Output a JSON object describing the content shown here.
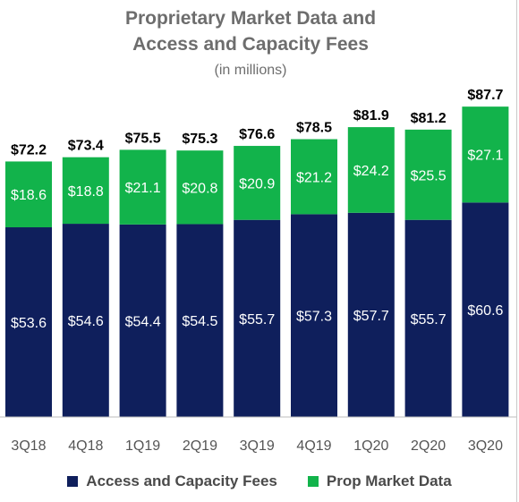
{
  "chart_data": {
    "type": "bar",
    "stacked": true,
    "title": "Proprietary Market Data and Access and Capacity Fees",
    "title_lines": [
      "Proprietary Market Data and",
      "Access and Capacity Fees"
    ],
    "subtitle": "(in millions)",
    "categories": [
      "3Q18",
      "4Q18",
      "1Q19",
      "2Q19",
      "3Q19",
      "4Q19",
      "1Q20",
      "2Q20",
      "3Q20"
    ],
    "series": [
      {
        "name": "Access and Capacity Fees",
        "color": "#0f1f5c",
        "values": [
          53.6,
          54.6,
          54.4,
          54.5,
          55.7,
          57.3,
          57.7,
          55.7,
          60.6
        ],
        "labels": [
          "$53.6",
          "$54.6",
          "$54.4",
          "$54.5",
          "$55.7",
          "$57.3",
          "$57.7",
          "$55.7",
          "$60.6"
        ]
      },
      {
        "name": "Prop Market Data",
        "color": "#12b34b",
        "values": [
          18.6,
          18.8,
          21.1,
          20.8,
          20.9,
          21.2,
          24.2,
          25.5,
          27.1
        ],
        "labels": [
          "$18.6",
          "$18.8",
          "$21.1",
          "$20.8",
          "$20.9",
          "$21.2",
          "$24.2",
          "$25.5",
          "$27.1"
        ]
      }
    ],
    "totals": [
      72.2,
      73.4,
      75.5,
      75.3,
      76.6,
      78.5,
      81.9,
      81.2,
      87.7
    ],
    "total_labels": [
      "$72.2",
      "$73.4",
      "$75.5",
      "$75.3",
      "$76.6",
      "$78.5",
      "$81.9",
      "$81.2",
      "$87.7"
    ],
    "xlabel": "",
    "ylabel": "",
    "grid": false,
    "legend_position": "bottom"
  }
}
